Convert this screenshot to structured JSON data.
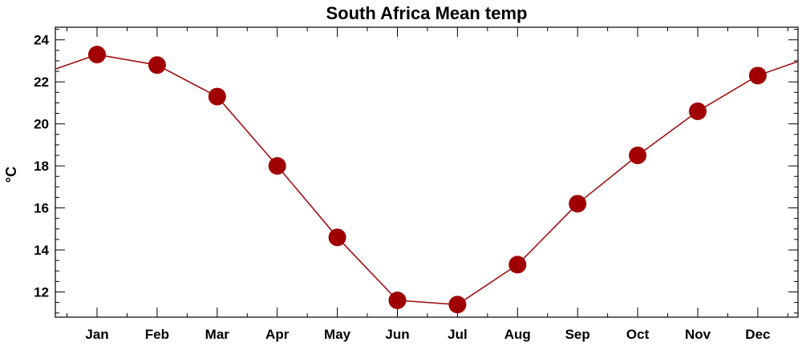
{
  "chart_data": {
    "type": "line",
    "title": "South Africa Mean temp",
    "xlabel": "",
    "ylabel": "°C",
    "categories": [
      "Jan",
      "Feb",
      "Mar",
      "Apr",
      "May",
      "Jun",
      "Jul",
      "Aug",
      "Sep",
      "Oct",
      "Nov",
      "Dec"
    ],
    "series": [
      {
        "values": [
          23.3,
          22.8,
          21.3,
          18.0,
          14.6,
          11.6,
          11.4,
          13.3,
          16.2,
          18.5,
          20.6,
          22.3
        ]
      }
    ],
    "ylim": [
      10.8,
      24.6
    ],
    "yticks": [
      12,
      14,
      16,
      18,
      20,
      22,
      24
    ],
    "ytick_labels": [
      "12",
      "14",
      "16",
      "18",
      "20",
      "22",
      "24"
    ],
    "cyclic": true,
    "grid": false,
    "colors": {
      "line": "#a01010",
      "marker": "#a00000",
      "axis": "#000000"
    }
  }
}
